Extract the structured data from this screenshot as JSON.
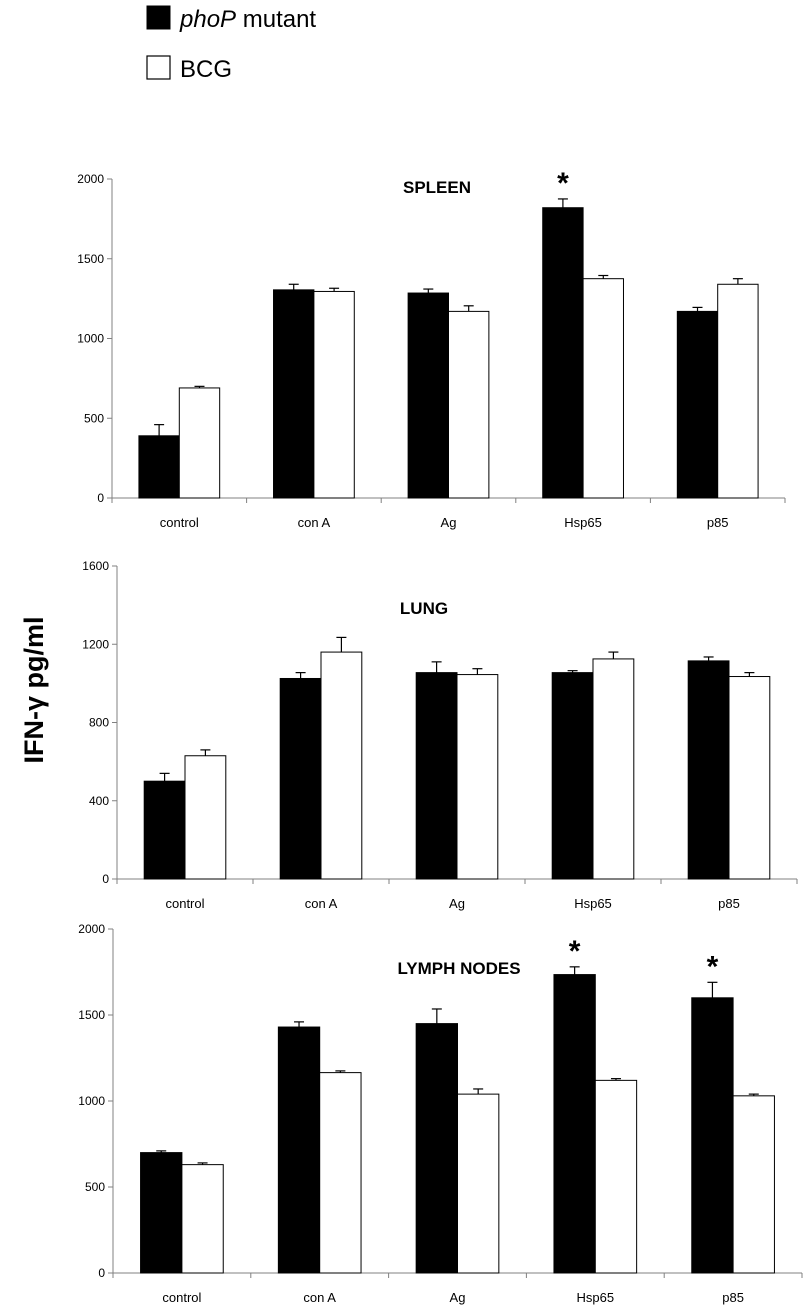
{
  "legend": {
    "items": [
      {
        "label_italic": "phoP",
        "label_rest": " mutant",
        "color": "#000000"
      },
      {
        "label_italic": "",
        "label_rest": "BCG",
        "color": "#ffffff"
      }
    ]
  },
  "ylabel": "IFN-γ pg/ml",
  "significance_marker": "*",
  "colors": {
    "phoP": "#000000",
    "BCG": "#ffffff",
    "axis": "#808080",
    "outline": "#000000"
  },
  "chart_data": [
    {
      "type": "bar",
      "title": "SPLEEN",
      "categories": [
        "control",
        "con A",
        "Ag",
        "Hsp65",
        "p85"
      ],
      "ylim": [
        0,
        2000
      ],
      "yticks": [
        0,
        500,
        1000,
        1500,
        2000
      ],
      "series": [
        {
          "name": "phoP mutant",
          "values": [
            390,
            1305,
            1285,
            1820,
            1170
          ],
          "errors": [
            70,
            35,
            25,
            55,
            25
          ]
        },
        {
          "name": "BCG",
          "values": [
            690,
            1295,
            1170,
            1375,
            1340
          ],
          "errors": [
            10,
            20,
            35,
            20,
            35
          ]
        }
      ],
      "significant": [
        3
      ]
    },
    {
      "type": "bar",
      "title": "LUNG",
      "categories": [
        "control",
        "con A",
        "Ag",
        "Hsp65",
        "p85"
      ],
      "ylim": [
        0,
        1600
      ],
      "yticks": [
        0,
        400,
        800,
        1200,
        1600
      ],
      "series": [
        {
          "name": "phoP mutant",
          "values": [
            500,
            1025,
            1055,
            1055,
            1115
          ],
          "errors": [
            40,
            30,
            55,
            10,
            20
          ]
        },
        {
          "name": "BCG",
          "values": [
            630,
            1160,
            1045,
            1125,
            1035
          ],
          "errors": [
            30,
            75,
            30,
            35,
            20
          ]
        }
      ],
      "significant": []
    },
    {
      "type": "bar",
      "title": "LYMPH NODES",
      "categories": [
        "control",
        "con A",
        "Ag",
        "Hsp65",
        "p85"
      ],
      "ylim": [
        0,
        2000
      ],
      "yticks": [
        0,
        500,
        1000,
        1500,
        2000
      ],
      "series": [
        {
          "name": "phoP mutant",
          "values": [
            700,
            1430,
            1450,
            1735,
            1600
          ],
          "errors": [
            10,
            30,
            85,
            45,
            90
          ]
        },
        {
          "name": "BCG",
          "values": [
            630,
            1165,
            1040,
            1120,
            1030
          ],
          "errors": [
            10,
            10,
            30,
            10,
            10
          ]
        }
      ],
      "significant": [
        3,
        4
      ]
    }
  ]
}
